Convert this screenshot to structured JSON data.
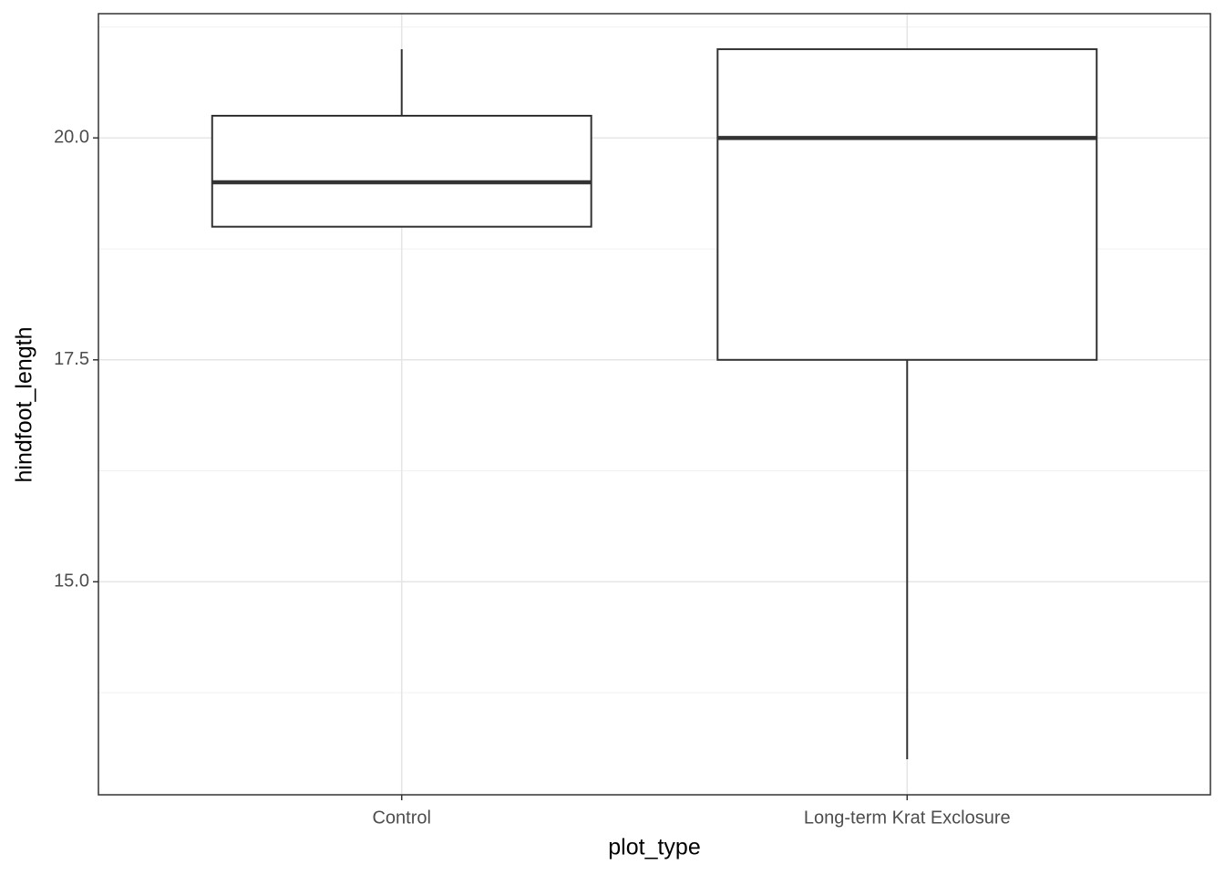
{
  "chart_data": {
    "type": "boxplot",
    "x_label": "plot_type",
    "y_label": "hindfoot_length",
    "categories": [
      "Control",
      "Long-term Krat Exclosure"
    ],
    "boxes": [
      {
        "min": 19,
        "q1": 19,
        "median": 19.5,
        "q3": 20.25,
        "max": 21
      },
      {
        "min": 13,
        "q1": 17.5,
        "median": 20,
        "q3": 21,
        "max": 21
      }
    ],
    "color": "#333333",
    "ylim": [
      12.6,
      21.4
    ],
    "yticks": [
      {
        "value": 15,
        "label": "15.0"
      },
      17.5,
      {
        "value": 20,
        "label": "20.0"
      }
    ],
    "minor_yticks": [
      13.75,
      16.25,
      18.75,
      21.25
    ],
    "grid": true
  }
}
